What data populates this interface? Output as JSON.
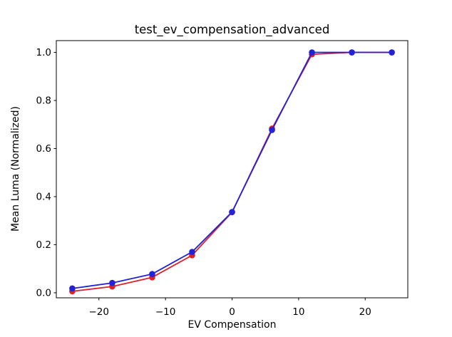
{
  "figure": {
    "background": "#ffffff"
  },
  "chart_data": {
    "type": "line",
    "title": "test_ev_compensation_advanced",
    "xlabel": "EV Compensation",
    "ylabel": "Mean Luma (Normalized)",
    "x": [
      -24,
      -18,
      -12,
      -6,
      0,
      6,
      12,
      18,
      24
    ],
    "series": [
      {
        "name": "red-series",
        "color": "#e0202a",
        "marker": "circle",
        "values": [
          0.006,
          0.026,
          0.064,
          0.156,
          0.335,
          0.683,
          0.992,
          1.0,
          1.0
        ]
      },
      {
        "name": "blue-series",
        "color": "#2222d8",
        "marker": "circle",
        "values": [
          0.018,
          0.041,
          0.078,
          0.17,
          0.336,
          0.677,
          1.0,
          1.0,
          1.0
        ]
      }
    ],
    "xlim": [
      -26.4,
      26.4
    ],
    "ylim": [
      -0.021,
      1.049
    ],
    "xticks": {
      "values": [
        -20,
        -10,
        0,
        10,
        20
      ],
      "labels": [
        "−20",
        "−10",
        "0",
        "10",
        "20"
      ]
    },
    "yticks": {
      "values": [
        0.0,
        0.2,
        0.4,
        0.6,
        0.8,
        1.0
      ],
      "labels": [
        "0.0",
        "0.2",
        "0.4",
        "0.6",
        "0.8",
        "1.0"
      ]
    },
    "grid": false,
    "legend": "none",
    "axis_color": "#000000"
  }
}
